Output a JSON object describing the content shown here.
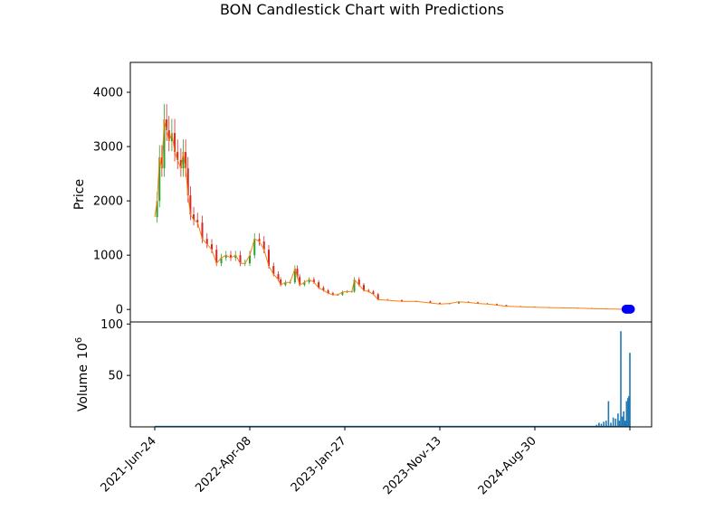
{
  "chart_data": {
    "type": "candlestick",
    "title": "BON Candlestick Chart with Predictions",
    "price_panel": {
      "ylabel": "Price",
      "yticks": [
        0,
        1000,
        2000,
        3000,
        4000
      ],
      "ylim": [
        -230,
        4550
      ],
      "up_color": "#2ca02c",
      "down_color": "#d62728",
      "close_line_color": "#ff7f0e",
      "prediction_color": "#0000ff",
      "series": [
        {
          "t": 0.0,
          "v": 1700
        },
        {
          "t": 0.005,
          "v": 2000
        },
        {
          "t": 0.01,
          "v": 2800
        },
        {
          "t": 0.015,
          "v": 2600
        },
        {
          "t": 0.02,
          "v": 3500
        },
        {
          "t": 0.025,
          "v": 3300
        },
        {
          "t": 0.03,
          "v": 3100
        },
        {
          "t": 0.036,
          "v": 3250
        },
        {
          "t": 0.042,
          "v": 2900
        },
        {
          "t": 0.048,
          "v": 2750
        },
        {
          "t": 0.055,
          "v": 2600
        },
        {
          "t": 0.06,
          "v": 2900
        },
        {
          "t": 0.065,
          "v": 2600
        },
        {
          "t": 0.07,
          "v": 2100
        },
        {
          "t": 0.075,
          "v": 1750
        },
        {
          "t": 0.082,
          "v": 1650
        },
        {
          "t": 0.09,
          "v": 1600
        },
        {
          "t": 0.1,
          "v": 1300
        },
        {
          "t": 0.11,
          "v": 1200
        },
        {
          "t": 0.12,
          "v": 1100
        },
        {
          "t": 0.13,
          "v": 850
        },
        {
          "t": 0.14,
          "v": 950
        },
        {
          "t": 0.15,
          "v": 1000
        },
        {
          "t": 0.16,
          "v": 950
        },
        {
          "t": 0.17,
          "v": 1000
        },
        {
          "t": 0.18,
          "v": 850
        },
        {
          "t": 0.19,
          "v": 850
        },
        {
          "t": 0.2,
          "v": 1000
        },
        {
          "t": 0.21,
          "v": 1300
        },
        {
          "t": 0.22,
          "v": 1250
        },
        {
          "t": 0.23,
          "v": 1100
        },
        {
          "t": 0.24,
          "v": 800
        },
        {
          "t": 0.25,
          "v": 650
        },
        {
          "t": 0.26,
          "v": 550
        },
        {
          "t": 0.265,
          "v": 450
        },
        {
          "t": 0.275,
          "v": 500
        },
        {
          "t": 0.285,
          "v": 500
        },
        {
          "t": 0.295,
          "v": 750
        },
        {
          "t": 0.3,
          "v": 600
        },
        {
          "t": 0.305,
          "v": 450
        },
        {
          "t": 0.315,
          "v": 500
        },
        {
          "t": 0.325,
          "v": 550
        },
        {
          "t": 0.335,
          "v": 500
        },
        {
          "t": 0.345,
          "v": 400
        },
        {
          "t": 0.355,
          "v": 350
        },
        {
          "t": 0.365,
          "v": 300
        },
        {
          "t": 0.375,
          "v": 270
        },
        {
          "t": 0.385,
          "v": 270
        },
        {
          "t": 0.395,
          "v": 320
        },
        {
          "t": 0.405,
          "v": 330
        },
        {
          "t": 0.415,
          "v": 330
        },
        {
          "t": 0.42,
          "v": 550
        },
        {
          "t": 0.43,
          "v": 450
        },
        {
          "t": 0.44,
          "v": 350
        },
        {
          "t": 0.45,
          "v": 330
        },
        {
          "t": 0.46,
          "v": 280
        },
        {
          "t": 0.47,
          "v": 180
        },
        {
          "t": 0.49,
          "v": 170
        },
        {
          "t": 0.52,
          "v": 150
        },
        {
          "t": 0.55,
          "v": 150
        },
        {
          "t": 0.58,
          "v": 120
        },
        {
          "t": 0.6,
          "v": 100
        },
        {
          "t": 0.62,
          "v": 110
        },
        {
          "t": 0.64,
          "v": 140
        },
        {
          "t": 0.66,
          "v": 130
        },
        {
          "t": 0.68,
          "v": 110
        },
        {
          "t": 0.7,
          "v": 100
        },
        {
          "t": 0.72,
          "v": 80
        },
        {
          "t": 0.74,
          "v": 60
        },
        {
          "t": 0.77,
          "v": 50
        },
        {
          "t": 0.8,
          "v": 40
        },
        {
          "t": 0.83,
          "v": 35
        },
        {
          "t": 0.86,
          "v": 30
        },
        {
          "t": 0.89,
          "v": 25
        },
        {
          "t": 0.92,
          "v": 15
        },
        {
          "t": 0.95,
          "v": 10
        },
        {
          "t": 0.98,
          "v": 5
        },
        {
          "t": 1.0,
          "v": 3
        }
      ],
      "predictions": [
        {
          "t": 0.992,
          "v": 5
        },
        {
          "t": 0.995,
          "v": 5
        },
        {
          "t": 0.998,
          "v": 5
        },
        {
          "t": 1.001,
          "v": 5
        }
      ]
    },
    "volume_panel": {
      "ylabel": "Volume",
      "unit_label": "10",
      "unit_exponent": "6",
      "yticks": [
        50,
        100
      ],
      "ylim": [
        0,
        102
      ],
      "color": "#1f77b4",
      "bars": [
        {
          "t": 0.0,
          "v": 0.4
        },
        {
          "t": 0.1,
          "v": 0.3
        },
        {
          "t": 0.2,
          "v": 0.3
        },
        {
          "t": 0.3,
          "v": 0.3
        },
        {
          "t": 0.4,
          "v": 0.3
        },
        {
          "t": 0.5,
          "v": 0.3
        },
        {
          "t": 0.6,
          "v": 0.3
        },
        {
          "t": 0.7,
          "v": 0.4
        },
        {
          "t": 0.8,
          "v": 0.5
        },
        {
          "t": 0.9,
          "v": 0.6
        },
        {
          "t": 0.93,
          "v": 2
        },
        {
          "t": 0.935,
          "v": 4
        },
        {
          "t": 0.94,
          "v": 3
        },
        {
          "t": 0.945,
          "v": 5
        },
        {
          "t": 0.95,
          "v": 6
        },
        {
          "t": 0.955,
          "v": 25
        },
        {
          "t": 0.96,
          "v": 4
        },
        {
          "t": 0.965,
          "v": 9
        },
        {
          "t": 0.97,
          "v": 8
        },
        {
          "t": 0.975,
          "v": 13
        },
        {
          "t": 0.978,
          "v": 6
        },
        {
          "t": 0.981,
          "v": 93
        },
        {
          "t": 0.984,
          "v": 10
        },
        {
          "t": 0.987,
          "v": 15
        },
        {
          "t": 0.99,
          "v": 6
        },
        {
          "t": 0.993,
          "v": 25
        },
        {
          "t": 0.996,
          "v": 28
        },
        {
          "t": 0.998,
          "v": 30
        },
        {
          "t": 1.0,
          "v": 72
        }
      ]
    },
    "x_axis": {
      "ticks": [
        {
          "label": "2021-Jun-24",
          "t": 0.0
        },
        {
          "label": "2022-Apr-08",
          "t": 0.2
        },
        {
          "label": "2023-Jan-27",
          "t": 0.4
        },
        {
          "label": "2023-Nov-13",
          "t": 0.6
        },
        {
          "label": "2024-Aug-30",
          "t": 0.8
        },
        {
          "label": "",
          "t": 1.0
        }
      ]
    }
  }
}
